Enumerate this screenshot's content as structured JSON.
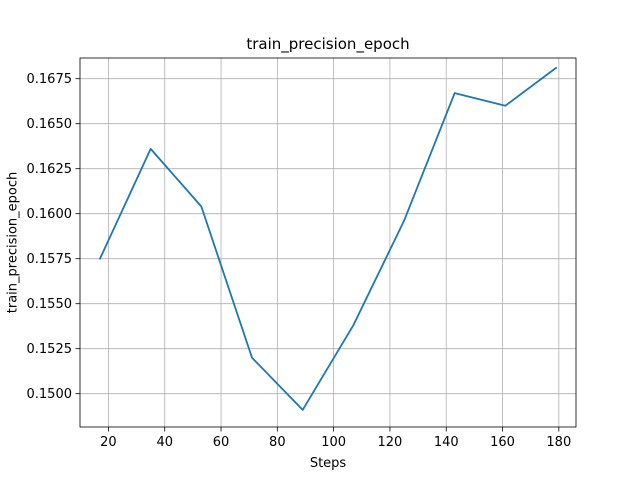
{
  "chart_data": {
    "type": "line",
    "title": "train_precision_epoch",
    "xlabel": "Steps",
    "ylabel": "train_precision_epoch",
    "xlim": [
      9.9,
      186.1
    ],
    "ylim": [
      0.14815,
      0.16865
    ],
    "xticks": [
      20,
      40,
      60,
      80,
      100,
      120,
      140,
      160,
      180
    ],
    "yticks": [
      0.15,
      0.1525,
      0.155,
      0.1575,
      0.16,
      0.1625,
      0.165,
      0.1675
    ],
    "xtick_labels": [
      "20",
      "40",
      "60",
      "80",
      "100",
      "120",
      "140",
      "160",
      "180"
    ],
    "ytick_labels": [
      "0.1500",
      "0.1525",
      "0.1550",
      "0.1575",
      "0.1600",
      "0.1625",
      "0.1650",
      "0.1675"
    ],
    "grid": true,
    "legend": false,
    "series": [
      {
        "color": "#1f77b4",
        "x": [
          17,
          35,
          53,
          71,
          89,
          107,
          125,
          143,
          161,
          179
        ],
        "y": [
          0.1575,
          0.1636,
          0.1604,
          0.152,
          0.1491,
          0.1538,
          0.1596,
          0.1667,
          0.166,
          0.1681
        ]
      }
    ]
  }
}
